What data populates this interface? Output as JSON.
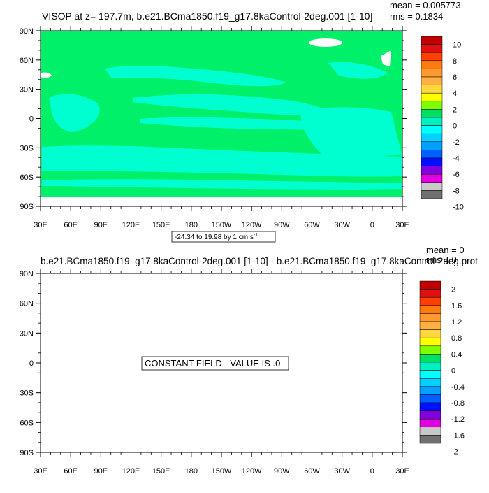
{
  "chart_data": [
    {
      "type": "heatmap",
      "title": "VISOP at z= 197.7m, b.e21.BCma1850.f19_g17.8kaControl-2deg.001 [1-10]",
      "mean_text": "mean = 0.005773",
      "rms_text": "rms = 0.1834",
      "y_ticks": [
        "90N",
        "60N",
        "30N",
        "0",
        "30S",
        "60S",
        "90S"
      ],
      "x_ticks": [
        "30E",
        "60E",
        "90E",
        "120E",
        "150E",
        "180",
        "150W",
        "120W",
        "90W",
        "60W",
        "30W",
        "0",
        "30E"
      ],
      "colorbar_labels": [
        "10",
        "8",
        "6",
        "4",
        "2",
        "0",
        "-2",
        "-4",
        "-6",
        "-8",
        "-10"
      ],
      "colorbar_colors": [
        "#c00000",
        "#e01010",
        "#ff4000",
        "#ff7a10",
        "#ff9a30",
        "#ffb040",
        "#ffd840",
        "#ffff00",
        "#80ff00",
        "#00e060",
        "#00f0c0",
        "#00ffff",
        "#00d0ff",
        "#00a0ff",
        "#0060ff",
        "#0010ff",
        "#8000e0",
        "#e000e0",
        "#c8c8c8",
        "#707070"
      ],
      "colors": {
        "land_fill": "#00f06a",
        "anomaly": "#00ffd0",
        "ice": "#ffffff"
      },
      "vector_label": "-24.34 to 19.98 by 1 cm s",
      "vector_label_sup": "-1"
    },
    {
      "type": "heatmap",
      "title": "b.e21.BCma1850.f19_g17.8kaControl-2deg.001 [1-10] - b.e21.BCma1850.f19_g17.8kaControl-2deg.prot",
      "mean_text": "mean = 0",
      "rms_text": "rms = 0",
      "y_ticks": [
        "90N",
        "60N",
        "30N",
        "0",
        "30S",
        "60S",
        "90S"
      ],
      "x_ticks": [
        "30E",
        "60E",
        "90E",
        "120E",
        "150E",
        "180",
        "150W",
        "120W",
        "90W",
        "60W",
        "30W",
        "0",
        "30E"
      ],
      "colorbar_labels": [
        "2",
        "1.6",
        "1.2",
        "0.8",
        "0.4",
        "0",
        "-0.4",
        "-0.8",
        "-1.2",
        "-1.6",
        "-2"
      ],
      "colorbar_colors": [
        "#c00000",
        "#e01010",
        "#ff4000",
        "#ff7a10",
        "#ff9a30",
        "#ffb040",
        "#ffd840",
        "#ffff00",
        "#80ff00",
        "#00e060",
        "#00f0c0",
        "#00ffff",
        "#00d0ff",
        "#00a0ff",
        "#0060ff",
        "#0010ff",
        "#8000e0",
        "#e000e0",
        "#c8c8c8",
        "#707070"
      ],
      "constant_text": "CONSTANT FIELD - VALUE IS .0"
    }
  ]
}
